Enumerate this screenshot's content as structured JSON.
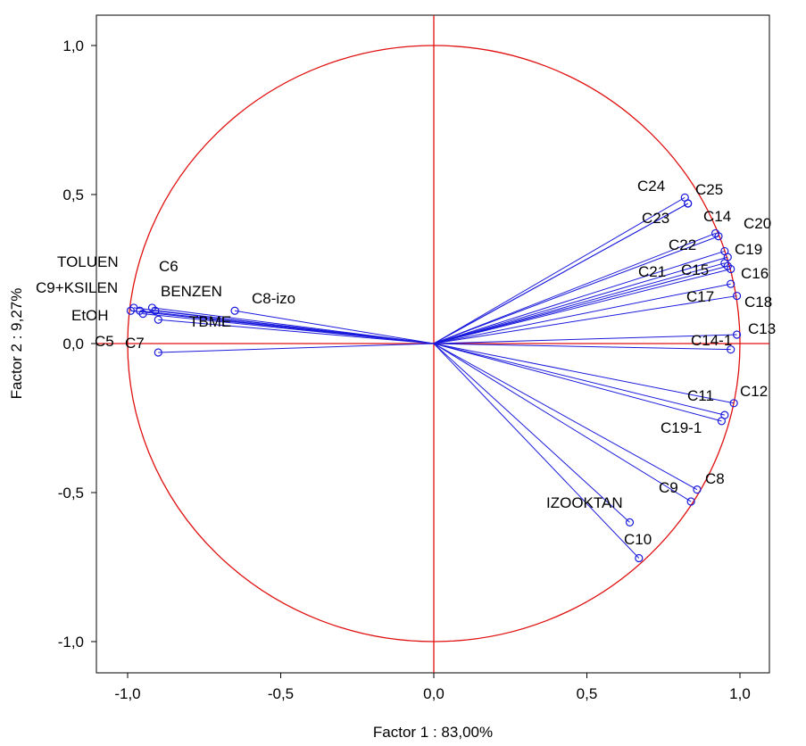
{
  "chart_data": {
    "type": "scatter",
    "title": "",
    "xlabel": "Factor 1 : 83,00%",
    "ylabel": "Factor 2 :  9,27%",
    "xlim": [
      -1.1,
      1.1
    ],
    "ylim": [
      -1.1,
      1.1
    ],
    "xticks": [
      "-1,0",
      "-0,5",
      "0,0",
      "0,5",
      "1,0"
    ],
    "yticks": [
      "1,0",
      "0,5",
      "0,0",
      "-0,5",
      "-1,0"
    ],
    "grid": false,
    "colors": {
      "points": "#1a1adc",
      "reference": "#e01010",
      "axes": "#000000"
    },
    "points": [
      {
        "name": "C24",
        "x": 0.82,
        "y": 0.49
      },
      {
        "name": "C25",
        "x": 0.83,
        "y": 0.47
      },
      {
        "name": "C23",
        "x": 0.83,
        "y": 0.47
      },
      {
        "name": "C14",
        "x": 0.92,
        "y": 0.37
      },
      {
        "name": "C20",
        "x": 0.93,
        "y": 0.36
      },
      {
        "name": "C22",
        "x": 0.95,
        "y": 0.31
      },
      {
        "name": "C19",
        "x": 0.96,
        "y": 0.29
      },
      {
        "name": "C21",
        "x": 0.95,
        "y": 0.27
      },
      {
        "name": "C15",
        "x": 0.96,
        "y": 0.26
      },
      {
        "name": "C16",
        "x": 0.97,
        "y": 0.25
      },
      {
        "name": "C17",
        "x": 0.97,
        "y": 0.2
      },
      {
        "name": "C18",
        "x": 0.99,
        "y": 0.16
      },
      {
        "name": "C13",
        "x": 0.99,
        "y": 0.03
      },
      {
        "name": "C14-1",
        "x": 0.97,
        "y": -0.02
      },
      {
        "name": "C12",
        "x": 0.98,
        "y": -0.2
      },
      {
        "name": "C11",
        "x": 0.95,
        "y": -0.24
      },
      {
        "name": "C19-1",
        "x": 0.94,
        "y": -0.26
      },
      {
        "name": "C8",
        "x": 0.86,
        "y": -0.49
      },
      {
        "name": "C9",
        "x": 0.84,
        "y": -0.53
      },
      {
        "name": "IZOOKTAN",
        "x": 0.64,
        "y": -0.6
      },
      {
        "name": "C10",
        "x": 0.67,
        "y": -0.72
      },
      {
        "name": "TOLUEN",
        "x": -0.98,
        "y": 0.12
      },
      {
        "name": "C9+KSILEN",
        "x": -0.96,
        "y": 0.11
      },
      {
        "name": "C6",
        "x": -0.92,
        "y": 0.12
      },
      {
        "name": "BENZEN",
        "x": -0.91,
        "y": 0.11
      },
      {
        "name": "EtOH",
        "x": -0.95,
        "y": 0.1
      },
      {
        "name": "TBME",
        "x": -0.9,
        "y": 0.08
      },
      {
        "name": "C5",
        "x": -0.99,
        "y": 0.11
      },
      {
        "name": "C7",
        "x": -0.9,
        "y": -0.03
      },
      {
        "name": "C8-izo",
        "x": -0.65,
        "y": 0.11
      }
    ]
  }
}
